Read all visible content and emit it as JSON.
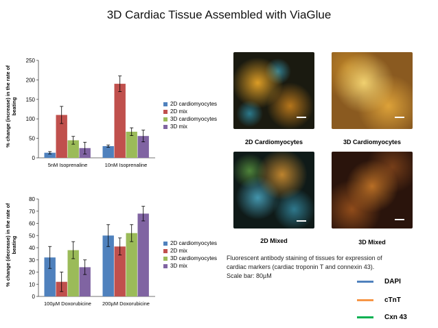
{
  "title": "3D Cardiac Tissue Assembled with ViaGlue",
  "colors": {
    "s1": "#4f81bd",
    "s2": "#c0504d",
    "s3": "#9bbb59",
    "s4": "#8064a2"
  },
  "chart_data": [
    {
      "type": "bar",
      "ylabel": "% change (increase) in the rate of beating",
      "ylim": [
        0,
        250
      ],
      "yticks": [
        0,
        50,
        100,
        150,
        200,
        250
      ],
      "categories": [
        "5nM Isoprenaline",
        "10nM Isoprenaline"
      ],
      "series": [
        {
          "name": "2D cardiomyocytes",
          "values": [
            13,
            30
          ],
          "err": [
            3,
            3
          ]
        },
        {
          "name": "2D mix",
          "values": [
            110,
            190
          ],
          "err": [
            22,
            20
          ]
        },
        {
          "name": "3D cardiomyocytes",
          "values": [
            45,
            67
          ],
          "err": [
            10,
            10
          ]
        },
        {
          "name": "3D mix",
          "values": [
            25,
            56
          ],
          "err": [
            15,
            15
          ]
        }
      ],
      "legend_position": "right"
    },
    {
      "type": "bar",
      "ylabel": "% change (decrease) in the rate of beating",
      "ylim": [
        0,
        80
      ],
      "yticks": [
        0,
        10,
        20,
        30,
        40,
        50,
        60,
        70,
        80
      ],
      "categories": [
        "100µM Doxorubicine",
        "200µM Doxorubicine"
      ],
      "series": [
        {
          "name": "2D cardiomyocytes",
          "values": [
            32,
            50
          ],
          "err": [
            9,
            9
          ]
        },
        {
          "name": "2D mix",
          "values": [
            12,
            41
          ],
          "err": [
            8,
            7
          ]
        },
        {
          "name": "3D cardiomyocytes",
          "values": [
            38,
            52
          ],
          "err": [
            7,
            7
          ]
        },
        {
          "name": "3D mix",
          "values": [
            24,
            68
          ],
          "err": [
            6,
            6
          ]
        }
      ],
      "legend_position": "right"
    }
  ],
  "panels": {
    "p1": "2D Cardiomyocytes",
    "p2": "3D Cardiomyocytes",
    "p3": "2D Mixed",
    "p4": "3D Mixed"
  },
  "description": "Fluorescent antibody staining of tissues for expression of cardiac markers (cardiac troponin T and connexin 43). Scale bar: 80µM",
  "markers": [
    {
      "label": "DAPI",
      "color": "#4f81bd"
    },
    {
      "label": "cTnT",
      "color": "#f79646"
    },
    {
      "label": "Cxn 43",
      "color": "#00b050"
    }
  ]
}
